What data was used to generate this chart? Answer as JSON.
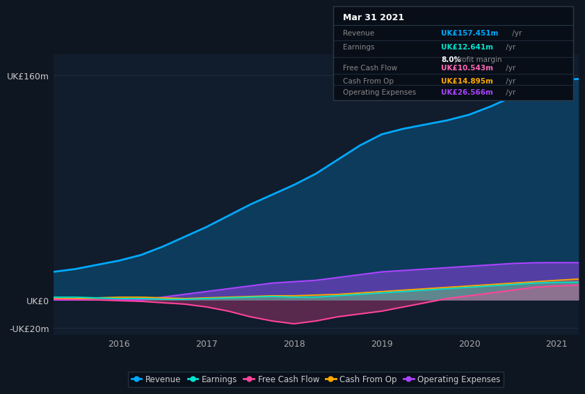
{
  "bg_color": "#0e1621",
  "chart_bg": "#0e1621",
  "plot_bg": "#111c2d",
  "title": "Mar 31 2021",
  "info_box": {
    "Revenue": {
      "value": "UK£157.451m",
      "color": "#00aaff"
    },
    "Earnings": {
      "value": "UK£12.641m",
      "color": "#00e5cc",
      "sub": "8.0% profit margin"
    },
    "Free Cash Flow": {
      "value": "UK£10.543m",
      "color": "#ff69b4"
    },
    "Cash From Op": {
      "value": "UK£14.895m",
      "color": "#ffaa00"
    },
    "Operating Expenses": {
      "value": "UK£26.566m",
      "color": "#aa44ff"
    }
  },
  "years": [
    2015.25,
    2015.5,
    2015.75,
    2016.0,
    2016.25,
    2016.5,
    2016.75,
    2017.0,
    2017.25,
    2017.5,
    2017.75,
    2018.0,
    2018.25,
    2018.5,
    2018.75,
    2019.0,
    2019.25,
    2019.5,
    2019.75,
    2020.0,
    2020.25,
    2020.5,
    2020.75,
    2021.0,
    2021.25
  ],
  "revenue": [
    20,
    22,
    25,
    28,
    32,
    38,
    45,
    52,
    60,
    68,
    75,
    82,
    90,
    100,
    110,
    118,
    122,
    125,
    128,
    132,
    138,
    145,
    152,
    157,
    157.451
  ],
  "earnings": [
    2,
    2,
    1.5,
    1,
    1,
    0.5,
    0.5,
    1,
    1.5,
    2,
    2.5,
    2,
    2,
    3,
    4,
    5,
    6,
    7,
    8,
    9,
    10,
    11,
    12,
    12.5,
    12.641
  ],
  "free_cash_flow": [
    0.5,
    0.3,
    0,
    -0.5,
    -1,
    -2,
    -3,
    -5,
    -8,
    -12,
    -15,
    -17,
    -15,
    -12,
    -10,
    -8,
    -5,
    -2,
    1,
    3,
    5,
    7,
    9,
    10,
    10.543
  ],
  "cash_from_op": [
    1,
    1,
    1.5,
    2,
    2,
    1.5,
    1,
    1.5,
    2,
    2.5,
    3,
    3,
    3.5,
    4,
    5,
    6,
    7,
    8,
    9,
    10,
    11,
    12,
    13,
    14,
    14.895
  ],
  "op_expenses": [
    0,
    0,
    0,
    0,
    0,
    2,
    4,
    6,
    8,
    10,
    12,
    13,
    14,
    16,
    18,
    20,
    21,
    22,
    23,
    24,
    25,
    26,
    26.5,
    26.566,
    26.566
  ],
  "revenue_color": "#00aaff",
  "earnings_color": "#00e5cc",
  "fcf_color": "#ff4499",
  "cashfromop_color": "#ffaa00",
  "opex_color": "#aa44ff",
  "ylim_min": -25,
  "ylim_max": 175,
  "yticks": [
    -20,
    0,
    160
  ],
  "ytick_labels": [
    "-UK£20m",
    "UK£0",
    "UK£160m"
  ],
  "xticks": [
    2016,
    2017,
    2018,
    2019,
    2020,
    2021
  ],
  "legend_items": [
    {
      "label": "Revenue",
      "color": "#00aaff"
    },
    {
      "label": "Earnings",
      "color": "#00e5cc"
    },
    {
      "label": "Free Cash Flow",
      "color": "#ff4499"
    },
    {
      "label": "Cash From Op",
      "color": "#ffaa00"
    },
    {
      "label": "Operating Expenses",
      "color": "#aa44ff"
    }
  ]
}
